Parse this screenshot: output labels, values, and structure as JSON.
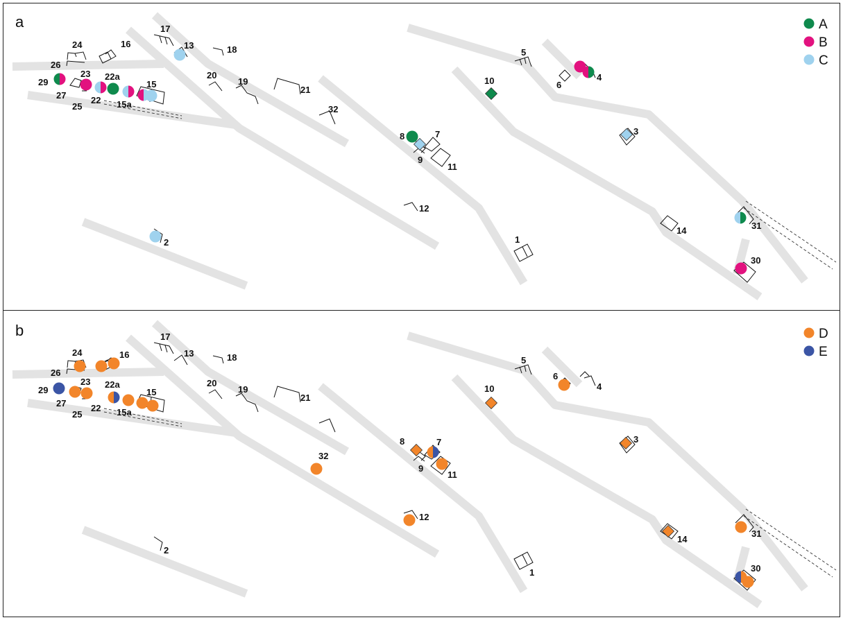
{
  "panels": [
    {
      "id": "a",
      "label": "a",
      "legend": [
        {
          "key": "A",
          "label": "A",
          "color": "#0f8a4d"
        },
        {
          "key": "B",
          "label": "B",
          "color": "#e2127f"
        },
        {
          "key": "C",
          "label": "C",
          "color": "#9fd2ee"
        }
      ]
    },
    {
      "id": "b",
      "label": "b",
      "legend": [
        {
          "key": "D",
          "label": "D",
          "color": "#f2852a"
        },
        {
          "key": "E",
          "label": "E",
          "color": "#3b55a5"
        }
      ]
    }
  ],
  "sites": [
    "1",
    "2",
    "3",
    "4",
    "5",
    "6",
    "7",
    "8",
    "9",
    "10",
    "11",
    "12",
    "13",
    "14",
    "15",
    "15a",
    "16",
    "17",
    "18",
    "19",
    "20",
    "21",
    "22",
    "22a",
    "23",
    "24",
    "25",
    "26",
    "27",
    "29",
    "30",
    "31",
    "32"
  ],
  "observations": {
    "a": [
      {
        "site": "29",
        "categories": [
          "A",
          "B"
        ]
      },
      {
        "site": "23",
        "categories": [
          "B"
        ]
      },
      {
        "site": "22",
        "categories": [
          "C",
          "B"
        ]
      },
      {
        "site": "22a",
        "categories": [
          "A"
        ]
      },
      {
        "site": "15a",
        "categories": [
          "C",
          "B"
        ]
      },
      {
        "site": "15",
        "categories": [
          "B",
          "C"
        ]
      },
      {
        "site": "13",
        "categories": [
          "C"
        ]
      },
      {
        "site": "2",
        "categories": [
          "C"
        ]
      },
      {
        "site": "8",
        "categories": [
          "A"
        ]
      },
      {
        "site": "9",
        "categories": [
          "C"
        ]
      },
      {
        "site": "10",
        "categories": [
          "A"
        ]
      },
      {
        "site": "4",
        "categories": [
          "B",
          "A"
        ]
      },
      {
        "site": "3",
        "categories": [
          "C"
        ]
      },
      {
        "site": "31",
        "categories": [
          "C",
          "A"
        ]
      },
      {
        "site": "30",
        "categories": [
          "B"
        ]
      }
    ],
    "b": [
      {
        "site": "29",
        "categories": [
          "E"
        ]
      },
      {
        "site": "27",
        "categories": [
          "D"
        ]
      },
      {
        "site": "23",
        "categories": [
          "D"
        ]
      },
      {
        "site": "22a",
        "categories": [
          "D",
          "E"
        ]
      },
      {
        "site": "15a",
        "categories": [
          "D"
        ]
      },
      {
        "site": "15",
        "categories": [
          "D"
        ]
      },
      {
        "site": "24",
        "categories": [
          "D"
        ]
      },
      {
        "site": "16",
        "categories": [
          "D"
        ]
      },
      {
        "site": "32",
        "categories": [
          "D"
        ]
      },
      {
        "site": "12",
        "categories": [
          "D"
        ]
      },
      {
        "site": "8",
        "categories": [
          "D"
        ]
      },
      {
        "site": "7",
        "categories": [
          "D",
          "E"
        ]
      },
      {
        "site": "11",
        "categories": [
          "D"
        ]
      },
      {
        "site": "10",
        "categories": [
          "D"
        ]
      },
      {
        "site": "6",
        "categories": [
          "D"
        ]
      },
      {
        "site": "3",
        "categories": [
          "D"
        ]
      },
      {
        "site": "14",
        "categories": [
          "D"
        ]
      },
      {
        "site": "31",
        "categories": [
          "D"
        ]
      },
      {
        "site": "30",
        "categories": [
          "E",
          "D"
        ]
      }
    ]
  }
}
